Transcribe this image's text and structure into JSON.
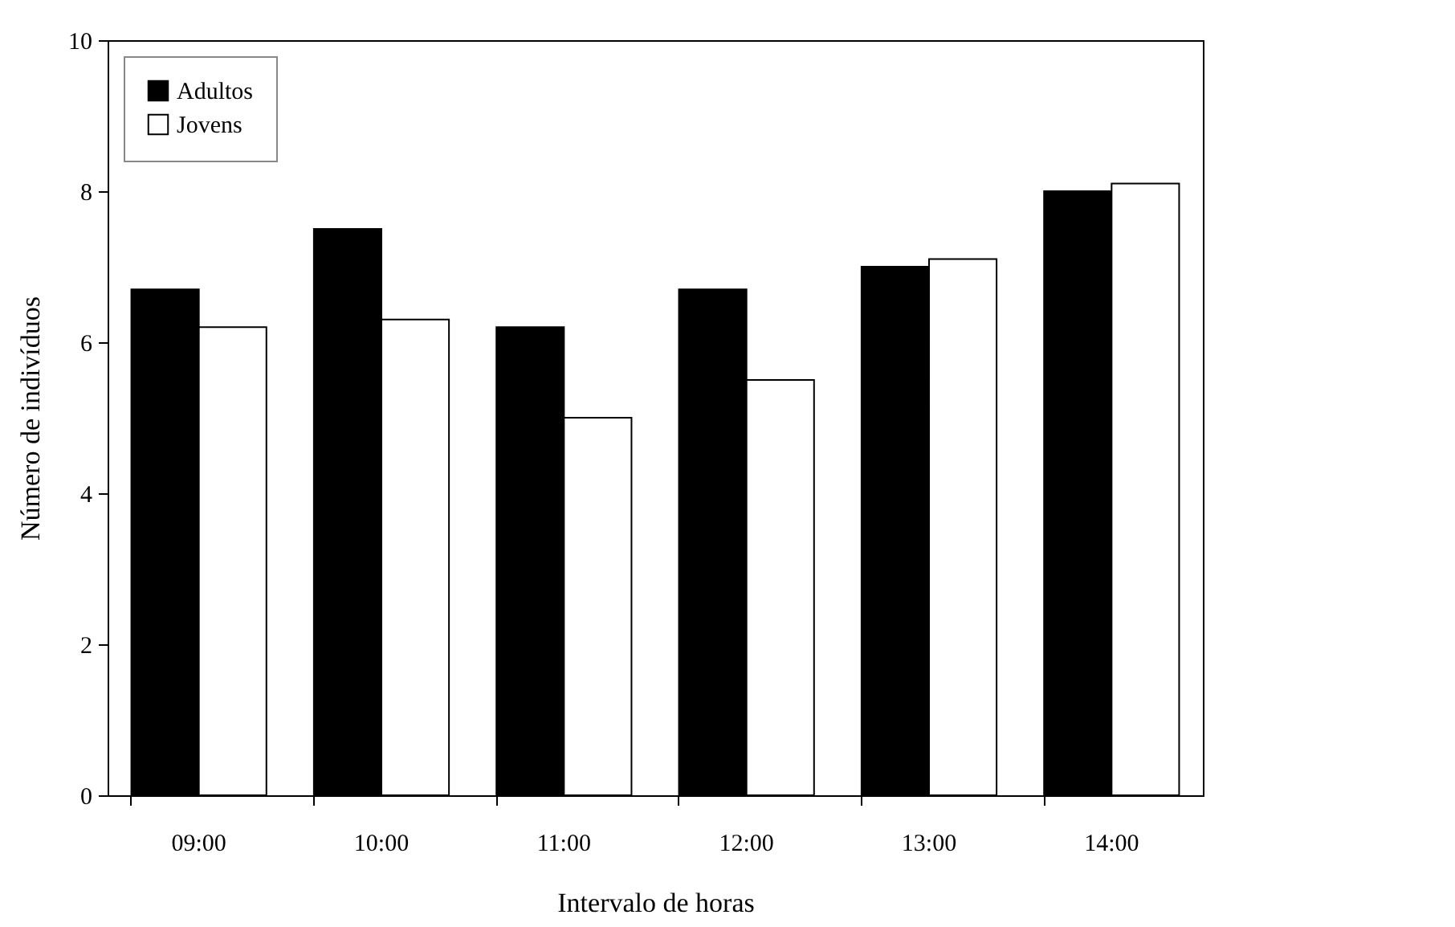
{
  "chart_data": {
    "type": "bar",
    "xlabel": "Intervalo de horas",
    "ylabel": "Número de indivíduos",
    "categories": [
      "09:00",
      "10:00",
      "11:00",
      "12:00",
      "13:00",
      "14:00"
    ],
    "series": [
      {
        "name": "Adultos",
        "color": "#000000",
        "values": [
          6.7,
          7.5,
          6.2,
          6.7,
          7.0,
          8.0
        ]
      },
      {
        "name": "Jovens",
        "color": "#ffffff",
        "values": [
          6.2,
          6.3,
          5.0,
          5.5,
          7.1,
          8.1
        ]
      }
    ],
    "ylim": [
      0,
      10
    ],
    "yticks": [
      0,
      2,
      4,
      6,
      8,
      10
    ],
    "grid": false,
    "legend": "top left"
  }
}
